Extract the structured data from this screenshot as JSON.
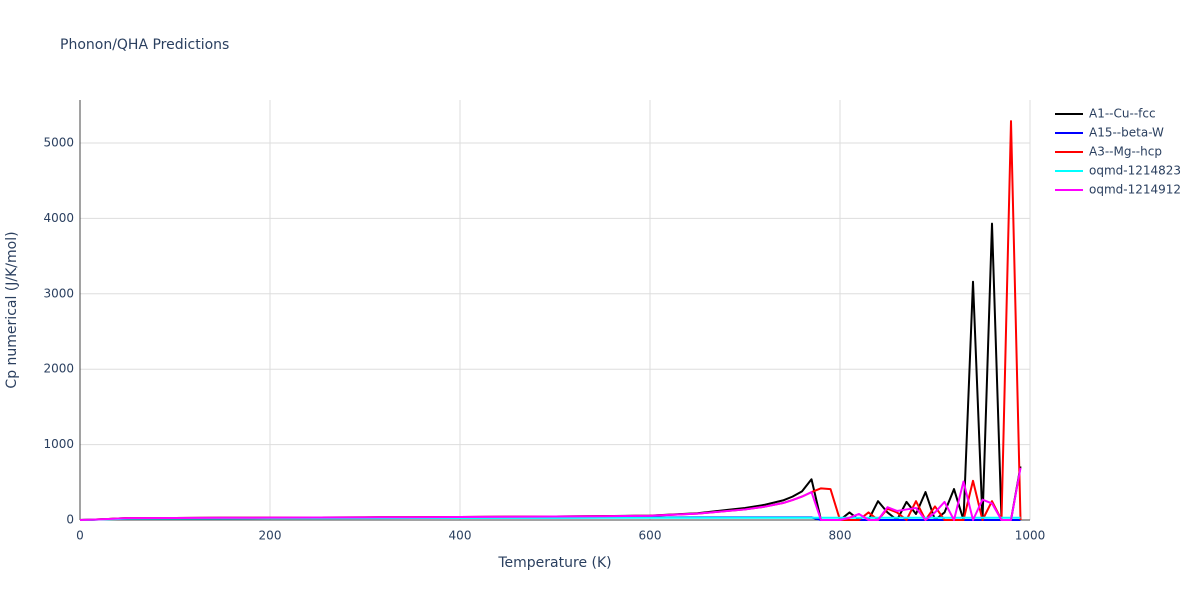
{
  "chart_data": {
    "type": "line",
    "title": "Phonon/QHA Predictions",
    "x_label": "Temperature (K)",
    "y_label": "Cp numerical (J/K/mol)",
    "x": [
      0,
      10,
      20,
      30,
      40,
      50,
      100,
      150,
      200,
      250,
      300,
      350,
      400,
      450,
      500,
      550,
      600,
      650,
      700,
      720,
      740,
      750,
      760,
      770,
      780,
      790,
      800,
      810,
      820,
      830,
      840,
      850,
      860,
      870,
      880,
      890,
      900,
      910,
      920,
      930,
      940,
      950,
      960,
      970,
      980,
      990
    ],
    "series": [
      {
        "name": "A1--Cu--fcc",
        "color": "#000000",
        "values": [
          0,
          3,
          8,
          14,
          20,
          25,
          27,
          29,
          31,
          33,
          35,
          37,
          40,
          43,
          47,
          51,
          58,
          90,
          160,
          200,
          260,
          310,
          380,
          540,
          0,
          0,
          0,
          100,
          0,
          0,
          250,
          100,
          0,
          240,
          80,
          370,
          0,
          100,
          410,
          0,
          3160,
          0,
          3930,
          0,
          0,
          710
        ]
      },
      {
        "name": "A15--beta-W",
        "color": "#0000ff",
        "values": [
          0,
          2,
          6,
          11,
          16,
          20,
          22,
          24,
          26,
          27,
          28,
          29,
          30,
          31,
          32,
          33,
          34,
          35,
          35,
          35,
          35,
          35,
          35,
          35,
          0,
          0,
          0,
          0,
          0,
          0,
          0,
          0,
          0,
          0,
          0,
          0,
          0,
          0,
          0,
          0,
          0,
          0,
          0,
          0,
          0,
          0
        ]
      },
      {
        "name": "A3--Mg--hcp",
        "color": "#ff0000",
        "values": [
          0,
          3,
          8,
          14,
          20,
          25,
          27,
          29,
          31,
          33,
          35,
          37,
          40,
          43,
          46,
          50,
          57,
          85,
          140,
          175,
          225,
          265,
          310,
          370,
          420,
          410,
          0,
          0,
          0,
          100,
          0,
          150,
          100,
          0,
          250,
          0,
          180,
          0,
          0,
          0,
          520,
          0,
          250,
          0,
          5290,
          0
        ]
      },
      {
        "name": "oqmd-1214823",
        "color": "#00ffff",
        "values": [
          0,
          2,
          6,
          10,
          14,
          18,
          20,
          22,
          23,
          24,
          25,
          26,
          27,
          28,
          28,
          29,
          29,
          30,
          30,
          30,
          30,
          30,
          30,
          30,
          30,
          30,
          30,
          30,
          30,
          30,
          30,
          30,
          30,
          30,
          30,
          30,
          30,
          30,
          30,
          30,
          30,
          30,
          30,
          30,
          30,
          30
        ]
      },
      {
        "name": "oqmd-1214912",
        "color": "#ff00ff",
        "values": [
          0,
          3,
          8,
          14,
          20,
          25,
          27,
          29,
          31,
          33,
          35,
          37,
          40,
          43,
          46,
          50,
          57,
          85,
          140,
          175,
          225,
          265,
          310,
          370,
          0,
          0,
          0,
          30,
          80,
          0,
          0,
          170,
          120,
          140,
          160,
          0,
          100,
          240,
          0,
          510,
          0,
          270,
          220,
          0,
          0,
          690
        ]
      }
    ],
    "xlim": [
      0,
      1000
    ],
    "xticks": [
      0,
      200,
      400,
      600,
      800,
      1000
    ],
    "ylim": [
      0,
      5570
    ],
    "yticks": [
      0,
      1000,
      2000,
      3000,
      4000,
      5000
    ],
    "grid": true,
    "legend": "right"
  }
}
